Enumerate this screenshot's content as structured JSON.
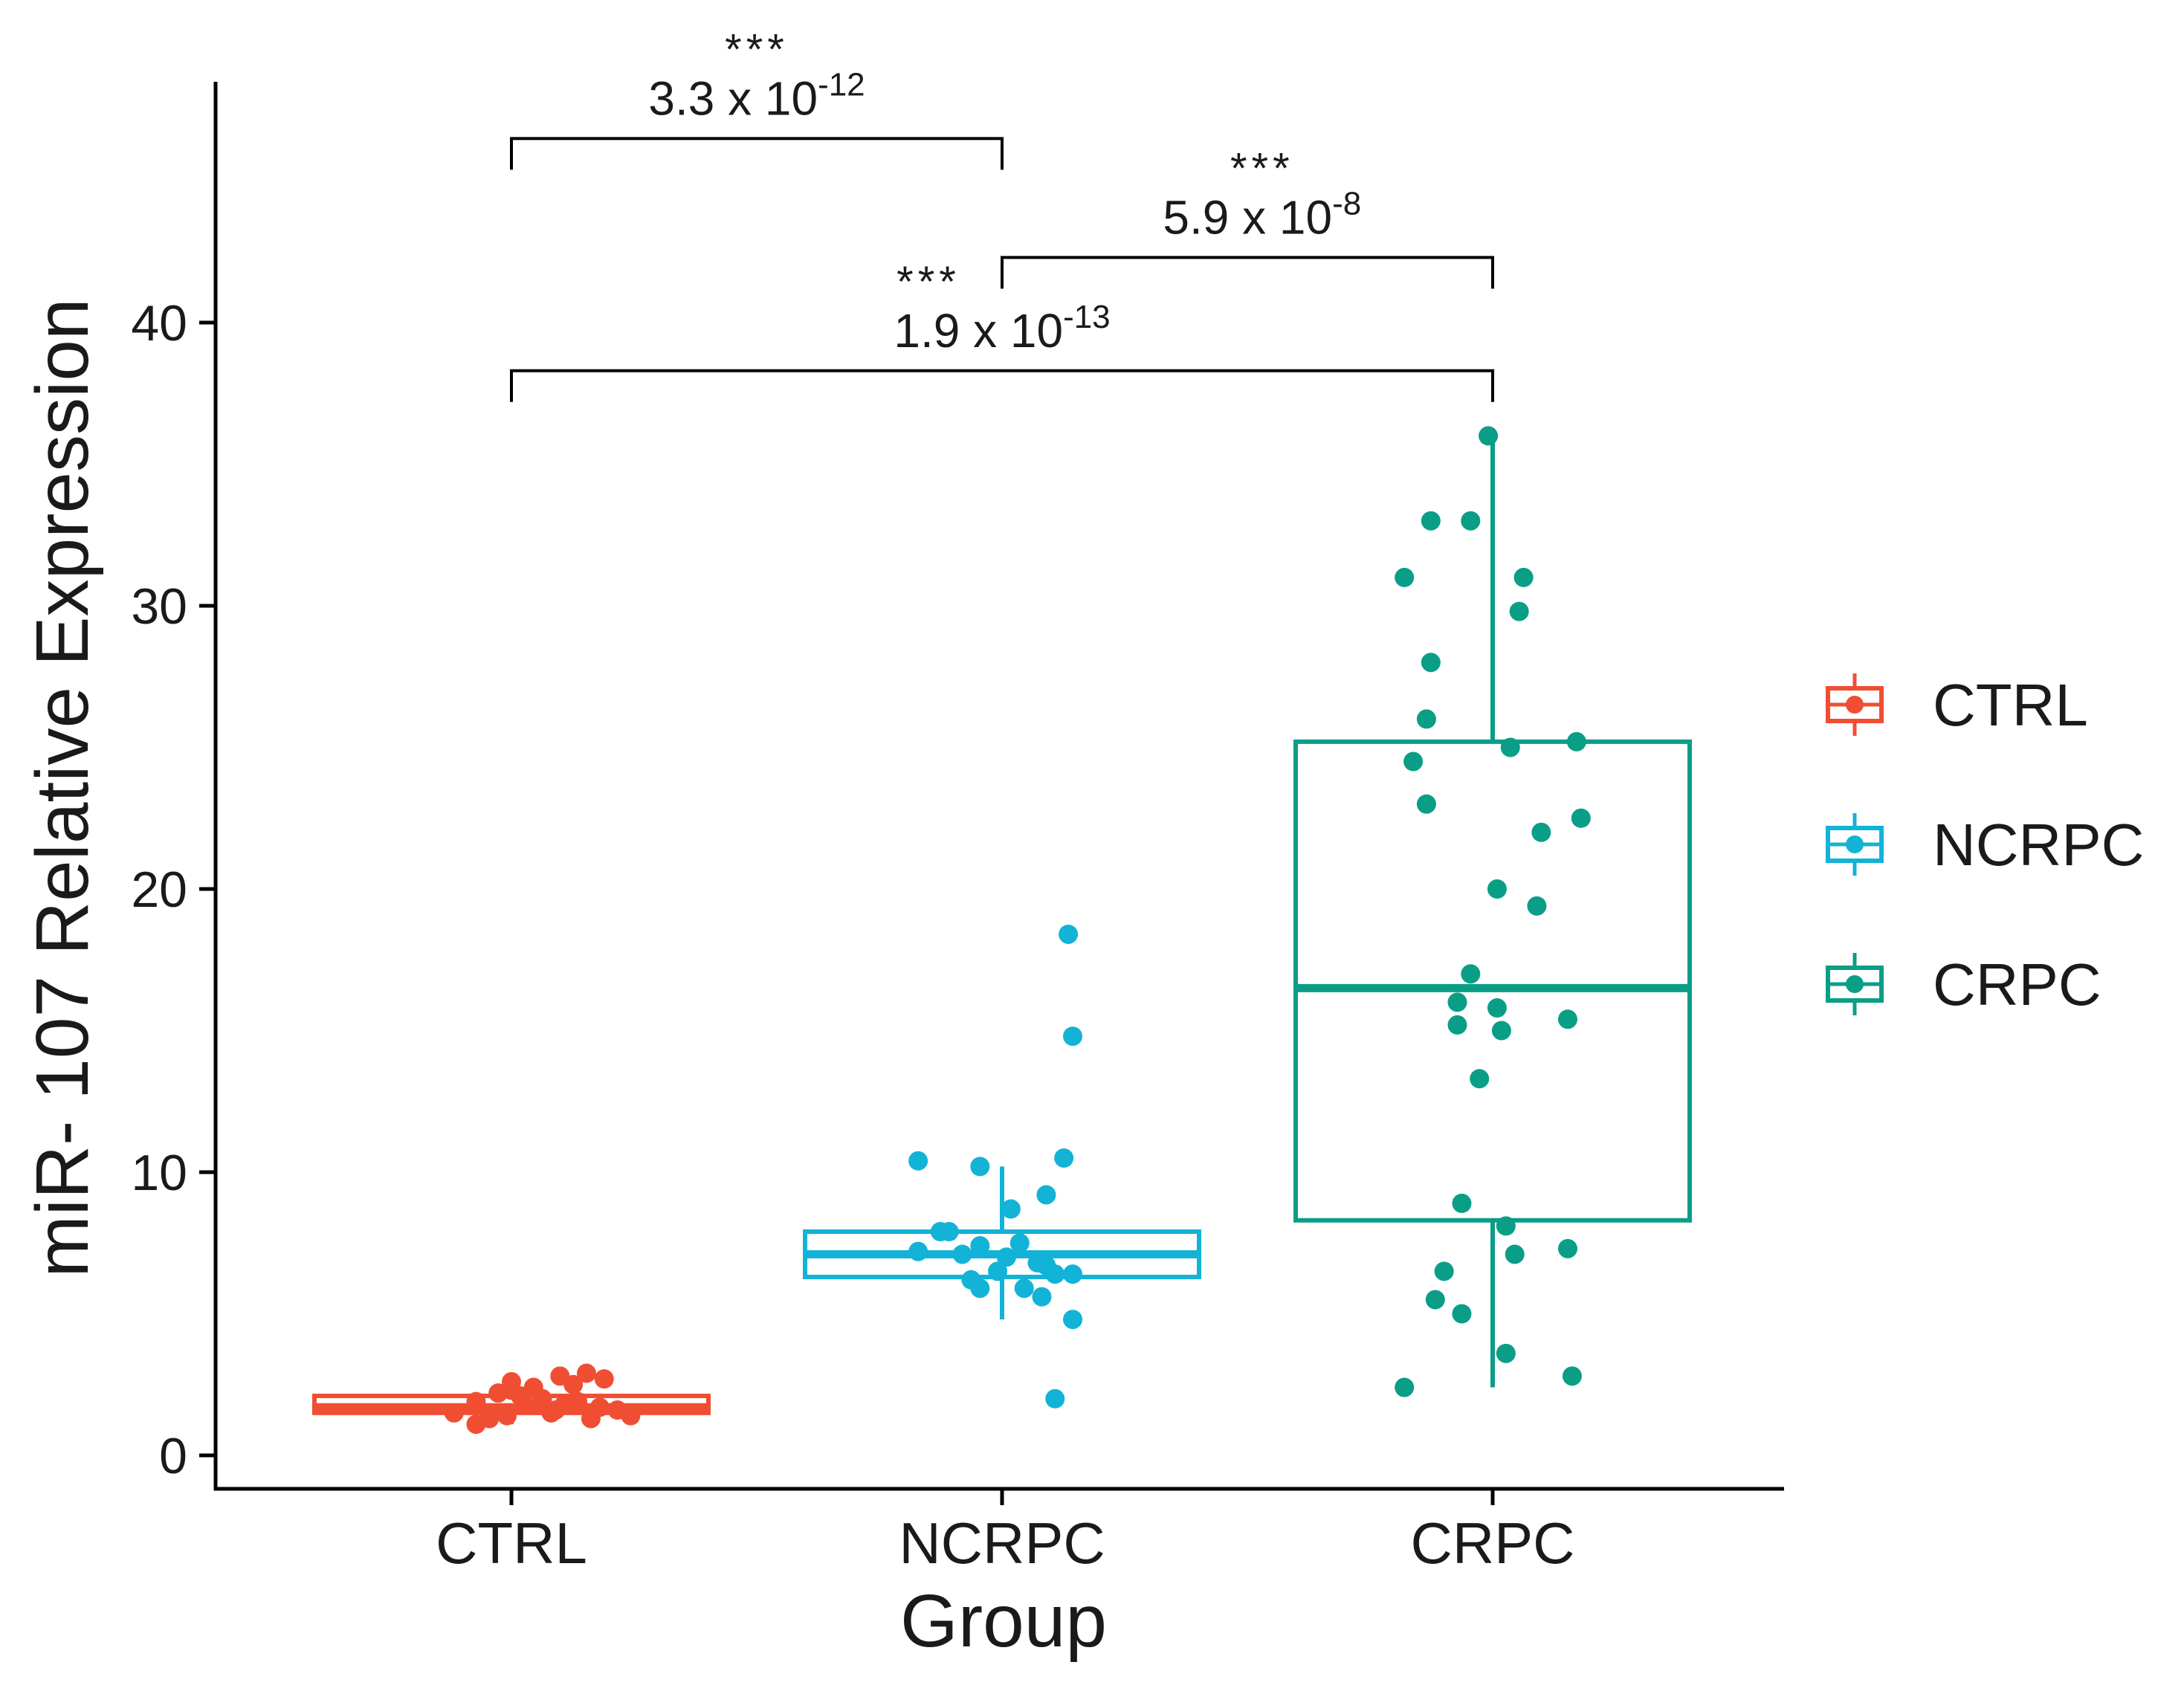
{
  "chart_data": {
    "type": "box",
    "title": "",
    "xlabel": "Group",
    "ylabel": "miR- 107 Relative Expression",
    "ylim": [
      -1.2,
      48.5
    ],
    "yticks": [
      0,
      10,
      20,
      30,
      40
    ],
    "categories": [
      "CTRL",
      "NCRPC",
      "CRPC"
    ],
    "legend": {
      "placement": "right"
    },
    "colors": {
      "CTRL": "#f04e33",
      "NCRPC": "#12b3d6",
      "CRPC": "#0a9e87"
    },
    "boxes": [
      {
        "name": "CTRL",
        "q1": 1.5,
        "median": 1.7,
        "q3": 2.1,
        "whisker_low": 1.1,
        "whisker_high": 2.9
      },
      {
        "name": "NCRPC",
        "q1": 6.3,
        "median": 7.1,
        "q3": 7.9,
        "whisker_low": 4.8,
        "whisker_high": 10.2
      },
      {
        "name": "CRPC",
        "q1": 8.3,
        "median": 16.5,
        "q3": 25.2,
        "whisker_low": 2.4,
        "whisker_high": 35.9
      }
    ],
    "points": [
      {
        "group": "CTRL",
        "values": [
          1.1,
          1.3,
          1.5,
          1.4,
          1.8,
          2.0,
          1.6,
          2.6,
          2.3,
          1.9,
          2.5,
          2.9,
          2.4,
          1.7,
          2.1,
          1.6,
          2.7,
          1.4,
          1.8,
          2.2,
          1.5,
          2.8,
          1.3,
          1.9
        ],
        "jitter": [
          -0.08,
          -0.05,
          -0.13,
          -0.01,
          0.03,
          0.07,
          0.1,
          0.0,
          0.0,
          -0.08,
          0.14,
          0.17,
          0.05,
          0.2,
          0.02,
          0.24,
          0.21,
          0.27,
          0.12,
          -0.03,
          0.09,
          0.11,
          0.18,
          0.15
        ]
      },
      {
        "group": "NCRPC",
        "values": [
          18.4,
          14.8,
          10.4,
          10.5,
          10.2,
          9.2,
          8.7,
          7.9,
          7.9,
          7.5,
          7.4,
          7.2,
          7.1,
          7.0,
          6.8,
          6.5,
          6.7,
          6.4,
          6.4,
          6.2,
          5.9,
          5.9,
          5.6,
          4.8,
          2.0
        ],
        "jitter": [
          0.15,
          0.16,
          -0.19,
          0.14,
          -0.05,
          0.1,
          0.02,
          -0.14,
          -0.12,
          0.04,
          -0.05,
          -0.19,
          -0.09,
          0.01,
          0.08,
          -0.01,
          0.1,
          0.12,
          0.16,
          -0.07,
          -0.05,
          0.05,
          0.09,
          0.16,
          0.12
        ]
      },
      {
        "group": "CRPC",
        "values": [
          36.0,
          33.0,
          33.0,
          31.0,
          31.0,
          29.8,
          28.0,
          26.0,
          25.2,
          25.0,
          24.5,
          23.0,
          22.5,
          22.0,
          20.0,
          19.4,
          17.0,
          16.0,
          15.8,
          15.4,
          15.2,
          15.0,
          13.3,
          8.9,
          8.1,
          7.3,
          7.1,
          6.5,
          5.5,
          5.0,
          3.6,
          2.8,
          2.4
        ],
        "jitter": [
          -0.01,
          -0.14,
          -0.05,
          -0.2,
          0.07,
          0.06,
          -0.14,
          -0.15,
          0.19,
          0.04,
          -0.18,
          -0.15,
          0.2,
          0.11,
          0.01,
          0.1,
          -0.05,
          -0.08,
          0.01,
          0.17,
          -0.08,
          0.02,
          -0.03,
          -0.07,
          0.03,
          0.17,
          0.05,
          -0.11,
          -0.13,
          -0.07,
          0.03,
          0.18,
          -0.2
        ]
      }
    ],
    "annotations": [
      {
        "from": "CTRL",
        "to": "NCRPC",
        "y": 46.5,
        "stars": "***",
        "p_base": "3.3 x 10",
        "p_exp": "-12",
        "star_pos": 0.5,
        "label_pos": 0.5
      },
      {
        "from": "NCRPC",
        "to": "CRPC",
        "y": 42.3,
        "stars": "***",
        "p_base": "5.9 x 10",
        "p_exp": "-8",
        "star_pos": 0.53,
        "label_pos": 0.53
      },
      {
        "from": "CTRL",
        "to": "CRPC",
        "y": 38.3,
        "stars": "***",
        "p_base": "1.9 x 10",
        "p_exp": "-13",
        "star_pos": 0.425,
        "label_pos": 0.5
      }
    ]
  }
}
